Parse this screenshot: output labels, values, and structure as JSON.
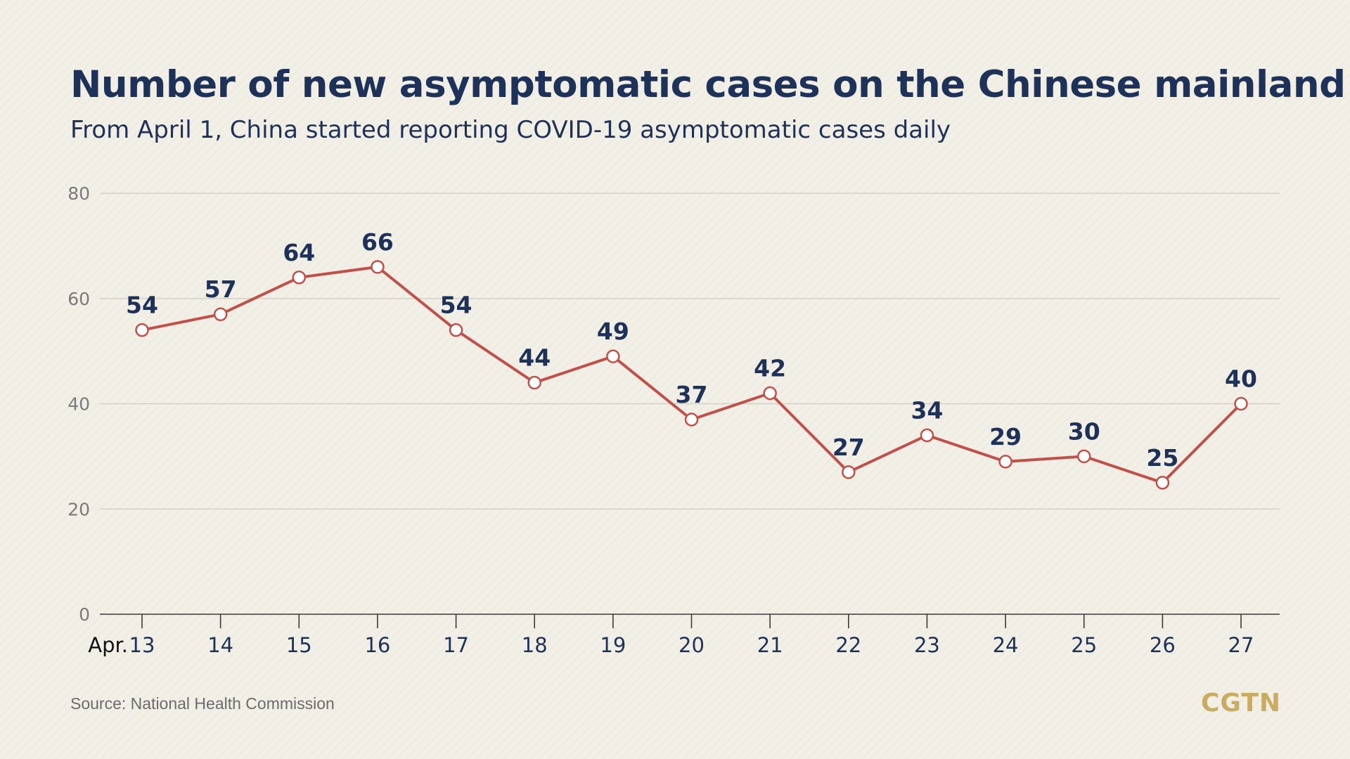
{
  "title": "Number of new asymptomatic cases on the Chinese mainland",
  "subtitle": "From April 1, China started reporting COVID-19 asymptomatic cases daily",
  "source": "Source: National Health Commission",
  "logo": "CGTN",
  "colors": {
    "line": "#c0504a",
    "label": "#1e3158",
    "tick_text": "#7b7b7b",
    "grid": "#cfcac0",
    "axis": "#3a3a3a",
    "logo": "#c9ac62"
  },
  "chart_data": {
    "type": "line",
    "x_month_label": "Apr.",
    "categories": [
      "13",
      "14",
      "15",
      "16",
      "17",
      "18",
      "19",
      "20",
      "21",
      "22",
      "23",
      "24",
      "25",
      "26",
      "27"
    ],
    "values": [
      54,
      57,
      64,
      66,
      54,
      44,
      49,
      37,
      42,
      27,
      34,
      29,
      30,
      25,
      40
    ],
    "ylim": [
      0,
      80
    ],
    "yticks": [
      0,
      20,
      40,
      60,
      80
    ],
    "grid": true,
    "data_labels": true
  }
}
